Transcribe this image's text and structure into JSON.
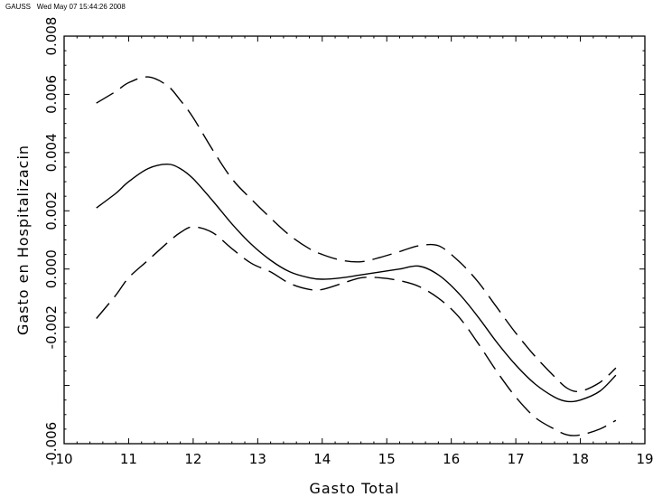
{
  "header": {
    "program": "GAUSS",
    "timestamp": "Wed May 07 15:44:26 2008"
  },
  "chart_data": {
    "type": "line",
    "title": "",
    "xlabel": "Gasto Total",
    "ylabel": "Gasto en Hospitalizacin",
    "xlim": [
      10,
      19
    ],
    "ylim": [
      -0.006,
      0.008
    ],
    "x_ticks": [
      "10",
      "11",
      "12",
      "13",
      "14",
      "15",
      "16",
      "17",
      "18",
      "19"
    ],
    "y_ticks": [
      "-0.006",
      "-0.004",
      "-0.002",
      "0.000",
      "0.002",
      "0.004",
      "0.006",
      "0.008"
    ],
    "y_tick_labels_shown": [
      "-0.006",
      "-0.002",
      "0.000",
      "0.002",
      "0.004",
      "0.006",
      "0.008"
    ],
    "grid": false,
    "series": [
      {
        "role": "estimate",
        "style": "solid",
        "color": "#000000",
        "x": [
          10.5,
          10.8,
          11.0,
          11.3,
          11.6,
          11.8,
          12.0,
          12.3,
          12.6,
          12.9,
          13.2,
          13.5,
          13.8,
          14.0,
          14.3,
          14.6,
          14.9,
          15.2,
          15.5,
          15.8,
          16.1,
          16.4,
          16.7,
          17.0,
          17.3,
          17.6,
          17.8,
          18.0,
          18.3,
          18.55
        ],
        "y": [
          0.0021,
          0.0026,
          0.003,
          0.00345,
          0.0036,
          0.00345,
          0.0031,
          0.00235,
          0.00155,
          0.00085,
          0.0003,
          -0.0001,
          -0.0003,
          -0.00035,
          -0.0003,
          -0.0002,
          -0.0001,
          0.0,
          0.0001,
          -0.0002,
          -0.0008,
          -0.0016,
          -0.0025,
          -0.0033,
          -0.00395,
          -0.0044,
          -0.00455,
          -0.0045,
          -0.0042,
          -0.00365
        ]
      },
      {
        "role": "upper-band",
        "style": "dashed",
        "color": "#000000",
        "x": [
          10.5,
          10.8,
          11.0,
          11.3,
          11.6,
          11.8,
          12.0,
          12.3,
          12.6,
          12.9,
          13.2,
          13.5,
          13.8,
          14.0,
          14.3,
          14.6,
          14.9,
          15.2,
          15.5,
          15.8,
          16.1,
          16.4,
          16.7,
          17.0,
          17.3,
          17.6,
          17.8,
          18.0,
          18.3,
          18.55
        ],
        "y": [
          0.0057,
          0.0061,
          0.0064,
          0.0066,
          0.0063,
          0.0058,
          0.0052,
          0.0041,
          0.0031,
          0.0024,
          0.00175,
          0.00115,
          0.0007,
          0.0005,
          0.0003,
          0.00025,
          0.0004,
          0.0006,
          0.0008,
          0.0008,
          0.0003,
          -0.0004,
          -0.0013,
          -0.0022,
          -0.003,
          -0.0037,
          -0.0041,
          -0.0042,
          -0.0039,
          -0.0034
        ]
      },
      {
        "role": "lower-band",
        "style": "dashed",
        "color": "#000000",
        "x": [
          10.5,
          10.8,
          11.0,
          11.3,
          11.6,
          11.8,
          12.0,
          12.3,
          12.6,
          12.9,
          13.2,
          13.5,
          13.8,
          14.0,
          14.3,
          14.6,
          14.9,
          15.2,
          15.5,
          15.8,
          16.1,
          16.4,
          16.7,
          17.0,
          17.3,
          17.6,
          17.8,
          18.0,
          18.3,
          18.55
        ],
        "y": [
          -0.0017,
          -0.0009,
          -0.0003,
          0.0003,
          0.0009,
          0.00125,
          0.00145,
          0.00125,
          0.0007,
          0.0002,
          -0.0001,
          -0.0005,
          -0.0007,
          -0.0007,
          -0.0005,
          -0.0003,
          -0.0003,
          -0.0004,
          -0.0006,
          -0.001,
          -0.0016,
          -0.0025,
          -0.0035,
          -0.0044,
          -0.0051,
          -0.0055,
          -0.0057,
          -0.0057,
          -0.0055,
          -0.0052
        ]
      }
    ]
  }
}
